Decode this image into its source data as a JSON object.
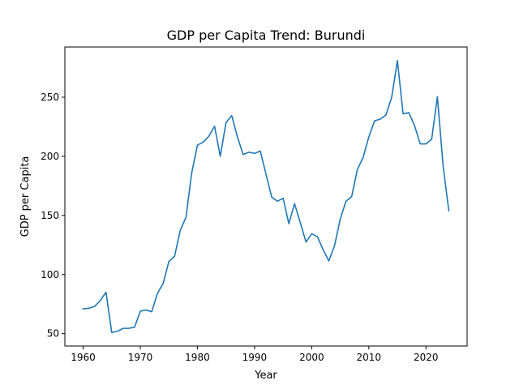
{
  "chart_data": {
    "type": "line",
    "title": "GDP per Capita Trend: Burundi",
    "xlabel": "Year",
    "ylabel": "GDP per Capita",
    "xlim": [
      1956.8,
      2027.2
    ],
    "ylim": [
      39.5,
      292.5
    ],
    "xticks": [
      1960,
      1970,
      1980,
      1990,
      2000,
      2010,
      2020
    ],
    "yticks": [
      50,
      100,
      150,
      200,
      250
    ],
    "grid": false,
    "legend": "none",
    "series": [
      {
        "color": "#1f77b4",
        "x": [
          1960,
          1961,
          1962,
          1963,
          1964,
          1965,
          1966,
          1967,
          1968,
          1969,
          1970,
          1971,
          1972,
          1973,
          1974,
          1975,
          1976,
          1977,
          1978,
          1979,
          1980,
          1981,
          1982,
          1983,
          1984,
          1985,
          1986,
          1987,
          1988,
          1989,
          1990,
          1991,
          1992,
          1993,
          1994,
          1995,
          1996,
          1997,
          1998,
          1999,
          2000,
          2001,
          2002,
          2003,
          2004,
          2005,
          2006,
          2007,
          2008,
          2009,
          2010,
          2011,
          2012,
          2013,
          2014,
          2015,
          2016,
          2017,
          2018,
          2019,
          2020,
          2021,
          2022,
          2023,
          2024
        ],
        "y": [
          71,
          71.5,
          73,
          78,
          85,
          51,
          52,
          54.5,
          54.5,
          55.5,
          69,
          70,
          68.5,
          84,
          92.5,
          111,
          115.5,
          137.5,
          148.5,
          186,
          209.5,
          212,
          217,
          225.5,
          200,
          228.5,
          234.5,
          216.5,
          201.5,
          203.5,
          202.5,
          204.5,
          185,
          165.5,
          162,
          164.5,
          143,
          160,
          144,
          127.5,
          134.5,
          132,
          121,
          111.5,
          124.5,
          147,
          162,
          166,
          189,
          199,
          216.5,
          230,
          231.5,
          235,
          250,
          281,
          236,
          237,
          226,
          210.5,
          210.5,
          214.5,
          250.5,
          192,
          154
        ]
      }
    ]
  }
}
